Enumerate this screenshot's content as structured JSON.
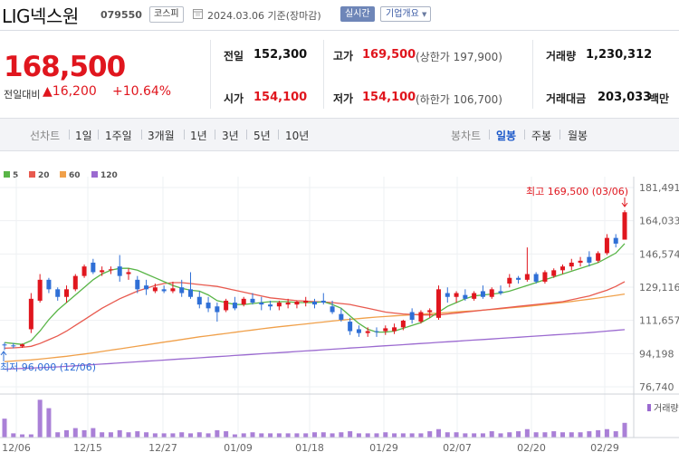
{
  "header": {
    "name": "LIG넥스원",
    "code": "079550",
    "market": "코스피",
    "date": "2024.03.06 기준(장마감)",
    "realtime": "실시간",
    "company_info": "기업개요"
  },
  "summary": {
    "price": "168,500",
    "change_label": "전일대비",
    "change_amount": "16,200",
    "change_rate": "+10.64%",
    "prev_close_label": "전일",
    "prev_close": "152,300",
    "high_label": "고가",
    "high": "169,500",
    "upper_limit": "(상한가 197,900)",
    "volume_label": "거래량",
    "volume": "1,230,312",
    "open_label": "시가",
    "open": "154,100",
    "low_label": "저가",
    "low": "154,100",
    "lower_limit": "(하한가 106,700)",
    "amount_label": "거래대금",
    "amount": "203,033",
    "amount_unit": "백만"
  },
  "toolbar": {
    "line_label": "선차트",
    "periods": [
      "1일",
      "1주일",
      "3개월",
      "1년",
      "3년",
      "5년",
      "10년"
    ],
    "candle_label": "봉차트",
    "candle_periods": [
      "일봉",
      "주봉",
      "월봉"
    ],
    "active_candle": "일봉"
  },
  "colors": {
    "up": "#e0161e",
    "down": "#2f6fd6",
    "ma5": "#59b547",
    "ma20": "#e85a4f",
    "ma60": "#f0a04a",
    "ma120": "#9b6ad0"
  },
  "chart_data": {
    "type": "candlestick",
    "legend": [
      {
        "name": "5",
        "color": "#59b547"
      },
      {
        "name": "20",
        "color": "#e85a4f"
      },
      {
        "name": "60",
        "color": "#f0a04a"
      },
      {
        "name": "120",
        "color": "#9b6ad0"
      }
    ],
    "y_ticks": [
      "181,491",
      "164,033",
      "146,574",
      "129,116",
      "111,657",
      "94,198",
      "76,740"
    ],
    "ylim": [
      76740,
      181491
    ],
    "x_ticks": [
      "12/06",
      "12/15",
      "12/27",
      "01/09",
      "01/18",
      "01/29",
      "02/07",
      "02/20",
      "02/29"
    ],
    "max_label": "최고 169,500 (03/06)",
    "min_label": "최저 96,000 (12/06)",
    "volume_label": "거래량",
    "candles": [
      {
        "o": 99000,
        "h": 100000,
        "l": 96000,
        "c": 98500
      },
      {
        "o": 98500,
        "h": 99800,
        "l": 97000,
        "c": 98000
      },
      {
        "o": 98000,
        "h": 99500,
        "l": 97200,
        "c": 99000
      },
      {
        "o": 107000,
        "h": 126000,
        "l": 105000,
        "c": 123000
      },
      {
        "o": 122000,
        "h": 136000,
        "l": 121000,
        "c": 133000
      },
      {
        "o": 133000,
        "h": 134000,
        "l": 126000,
        "c": 128000
      },
      {
        "o": 128000,
        "h": 129000,
        "l": 122000,
        "c": 124000
      },
      {
        "o": 124000,
        "h": 130000,
        "l": 121000,
        "c": 128000
      },
      {
        "o": 128000,
        "h": 136000,
        "l": 127000,
        "c": 135000
      },
      {
        "o": 135000,
        "h": 141000,
        "l": 134000,
        "c": 140000
      },
      {
        "o": 142000,
        "h": 144000,
        "l": 136000,
        "c": 137000
      },
      {
        "o": 137000,
        "h": 140000,
        "l": 135000,
        "c": 138000
      },
      {
        "o": 138000,
        "h": 140000,
        "l": 136000,
        "c": 138500
      },
      {
        "o": 140000,
        "h": 146000,
        "l": 132000,
        "c": 135000
      },
      {
        "o": 136000,
        "h": 139000,
        "l": 133000,
        "c": 137000
      },
      {
        "o": 133000,
        "h": 135000,
        "l": 126000,
        "c": 128000
      },
      {
        "o": 130000,
        "h": 133000,
        "l": 125000,
        "c": 128000
      },
      {
        "o": 127000,
        "h": 131000,
        "l": 126000,
        "c": 129000
      },
      {
        "o": 128000,
        "h": 130000,
        "l": 126000,
        "c": 127000
      },
      {
        "o": 127000,
        "h": 132000,
        "l": 126000,
        "c": 128500
      },
      {
        "o": 129000,
        "h": 133000,
        "l": 124000,
        "c": 126000
      },
      {
        "o": 128000,
        "h": 137000,
        "l": 123000,
        "c": 124000
      },
      {
        "o": 124000,
        "h": 127000,
        "l": 118000,
        "c": 120000
      },
      {
        "o": 121000,
        "h": 124000,
        "l": 116000,
        "c": 118000
      },
      {
        "o": 119000,
        "h": 121000,
        "l": 111000,
        "c": 116000
      },
      {
        "o": 117000,
        "h": 123000,
        "l": 116000,
        "c": 122000
      },
      {
        "o": 121000,
        "h": 124000,
        "l": 117000,
        "c": 118000
      },
      {
        "o": 120000,
        "h": 124000,
        "l": 119000,
        "c": 123000
      },
      {
        "o": 123000,
        "h": 126000,
        "l": 120000,
        "c": 121000
      },
      {
        "o": 121000,
        "h": 124000,
        "l": 117000,
        "c": 120000
      },
      {
        "o": 120000,
        "h": 122000,
        "l": 117000,
        "c": 119000
      },
      {
        "o": 119000,
        "h": 122000,
        "l": 117000,
        "c": 121000
      },
      {
        "o": 120000,
        "h": 123000,
        "l": 118000,
        "c": 121000
      },
      {
        "o": 120000,
        "h": 122000,
        "l": 118000,
        "c": 121500
      },
      {
        "o": 121000,
        "h": 124000,
        "l": 119000,
        "c": 122000
      },
      {
        "o": 121500,
        "h": 123000,
        "l": 118000,
        "c": 120000
      },
      {
        "o": 122000,
        "h": 126000,
        "l": 120000,
        "c": 121000
      },
      {
        "o": 119000,
        "h": 122000,
        "l": 115000,
        "c": 116000
      },
      {
        "o": 115000,
        "h": 118000,
        "l": 111000,
        "c": 112000
      },
      {
        "o": 111000,
        "h": 113000,
        "l": 104000,
        "c": 106000
      },
      {
        "o": 107000,
        "h": 109000,
        "l": 103000,
        "c": 105000
      },
      {
        "o": 105000,
        "h": 108000,
        "l": 103000,
        "c": 106000
      },
      {
        "o": 106000,
        "h": 108000,
        "l": 103000,
        "c": 105500
      },
      {
        "o": 106000,
        "h": 109000,
        "l": 104000,
        "c": 107500
      },
      {
        "o": 106000,
        "h": 110000,
        "l": 104500,
        "c": 108000
      },
      {
        "o": 108000,
        "h": 112000,
        "l": 106500,
        "c": 111500
      },
      {
        "o": 116000,
        "h": 118000,
        "l": 110000,
        "c": 112000
      },
      {
        "o": 111000,
        "h": 117000,
        "l": 110000,
        "c": 116000
      },
      {
        "o": 116000,
        "h": 118000,
        "l": 113000,
        "c": 117000
      },
      {
        "o": 113000,
        "h": 130000,
        "l": 112000,
        "c": 128000
      },
      {
        "o": 126000,
        "h": 129000,
        "l": 121000,
        "c": 124000
      },
      {
        "o": 124000,
        "h": 127000,
        "l": 121000,
        "c": 126000
      },
      {
        "o": 125000,
        "h": 128000,
        "l": 122000,
        "c": 123000
      },
      {
        "o": 123000,
        "h": 127000,
        "l": 122000,
        "c": 126000
      },
      {
        "o": 127000,
        "h": 130000,
        "l": 123000,
        "c": 124000
      },
      {
        "o": 124000,
        "h": 129000,
        "l": 123000,
        "c": 128000
      },
      {
        "o": 127000,
        "h": 130000,
        "l": 125000,
        "c": 126000
      },
      {
        "o": 131000,
        "h": 136000,
        "l": 129000,
        "c": 134000
      },
      {
        "o": 134000,
        "h": 135000,
        "l": 131000,
        "c": 133000
      },
      {
        "o": 133000,
        "h": 150000,
        "l": 132000,
        "c": 136000
      },
      {
        "o": 136000,
        "h": 137000,
        "l": 131000,
        "c": 132000
      },
      {
        "o": 132000,
        "h": 138000,
        "l": 131000,
        "c": 137000
      },
      {
        "o": 135000,
        "h": 139000,
        "l": 134000,
        "c": 138000
      },
      {
        "o": 138000,
        "h": 141000,
        "l": 136000,
        "c": 140000
      },
      {
        "o": 140000,
        "h": 144000,
        "l": 138000,
        "c": 142000
      },
      {
        "o": 142000,
        "h": 145000,
        "l": 140000,
        "c": 143000
      },
      {
        "o": 145000,
        "h": 148000,
        "l": 140000,
        "c": 142000
      },
      {
        "o": 143000,
        "h": 148000,
        "l": 142000,
        "c": 147000
      },
      {
        "o": 147000,
        "h": 157000,
        "l": 146000,
        "c": 155000
      },
      {
        "o": 155000,
        "h": 157000,
        "l": 150000,
        "c": 152000
      },
      {
        "o": 154100,
        "h": 169500,
        "l": 154100,
        "c": 168500
      }
    ],
    "volumes": [
      18,
      4,
      3,
      3,
      36,
      28,
      5,
      7,
      9,
      7,
      9,
      5,
      5,
      7,
      5,
      6,
      5,
      4,
      4,
      4,
      5,
      4,
      5,
      4,
      7,
      6,
      3,
      4,
      5,
      4,
      4,
      4,
      4,
      4,
      4,
      5,
      5,
      4,
      5,
      6,
      4,
      4,
      4,
      5,
      4,
      4,
      4,
      4,
      6,
      8,
      5,
      5,
      4,
      4,
      4,
      6,
      4,
      5,
      6,
      8,
      5,
      5,
      6,
      5,
      5,
      5,
      6,
      7,
      8,
      6,
      14
    ],
    "vol_max": 38,
    "ma5": [
      100000,
      99500,
      99000,
      101000,
      106000,
      112000,
      117000,
      121000,
      125000,
      129000,
      133000,
      136000,
      138000,
      139000,
      139000,
      138000,
      136000,
      134000,
      132000,
      130000,
      128500,
      127500,
      127000,
      125000,
      122000,
      121000,
      120000,
      120000,
      120500,
      121000,
      121500,
      121500,
      121500,
      121000,
      121000,
      121000,
      121500,
      120000,
      118000,
      114000,
      110000,
      107000,
      105500,
      105500,
      106000,
      107500,
      109000,
      110500,
      113000,
      116000,
      119000,
      121000,
      123000,
      124500,
      125000,
      125500,
      126000,
      127000,
      128500,
      130000,
      131500,
      133000,
      134500,
      136000,
      137500,
      139000,
      140500,
      142000,
      144500,
      147000,
      152000
    ],
    "ma20": [
      97000,
      97200,
      97500,
      98000,
      99500,
      101500,
      103500,
      106000,
      109000,
      112000,
      115000,
      118000,
      120500,
      123000,
      125000,
      127000,
      128500,
      130000,
      131000,
      131500,
      131500,
      131000,
      130500,
      130000,
      129500,
      128500,
      127500,
      126500,
      125500,
      124500,
      123500,
      123000,
      122500,
      122000,
      121800,
      121500,
      121300,
      121000,
      120500,
      120000,
      119000,
      118000,
      117000,
      116000,
      115500,
      115000,
      114800,
      114500,
      114500,
      114500,
      115000,
      115500,
      116000,
      116500,
      117000,
      117500,
      118000,
      118500,
      119000,
      119500,
      120000,
      120500,
      121000,
      121500,
      122500,
      123500,
      124500,
      126000,
      127500,
      129500,
      132000
    ],
    "ma60": [
      90000,
      90300,
      90600,
      90900,
      91300,
      91800,
      92300,
      92800,
      93400,
      94000,
      94600,
      95300,
      96000,
      96700,
      97400,
      98100,
      98800,
      99500,
      100200,
      100900,
      101600,
      102300,
      103000,
      103600,
      104200,
      104800,
      105400,
      106000,
      106600,
      107200,
      107800,
      108300,
      108800,
      109300,
      109800,
      110300,
      110800,
      111300,
      111800,
      112200,
      112600,
      113000,
      113400,
      113700,
      114000,
      114300,
      114600,
      114900,
      115200,
      115500,
      115800,
      116100,
      116400,
      116700,
      117000,
      117400,
      117800,
      118200,
      118600,
      119000,
      119500,
      120000,
      120500,
      121000,
      121600,
      122200,
      122800,
      123400,
      124100,
      124800,
      125500
    ],
    "ma120": [
      86000,
      86200,
      86400,
      86600,
      86800,
      87000,
      87200,
      87500,
      87800,
      88100,
      88400,
      88700,
      89000,
      89300,
      89600,
      89900,
      90200,
      90500,
      90800,
      91100,
      91400,
      91700,
      92000,
      92300,
      92600,
      92900,
      93200,
      93500,
      93800,
      94100,
      94400,
      94700,
      95000,
      95300,
      95600,
      95900,
      96200,
      96500,
      96800,
      97100,
      97400,
      97700,
      98000,
      98300,
      98600,
      98900,
      99200,
      99500,
      99800,
      100100,
      100400,
      100700,
      101000,
      101300,
      101600,
      101900,
      102200,
      102500,
      102800,
      103100,
      103400,
      103700,
      104000,
      104300,
      104600,
      104900,
      105200,
      105600,
      106000,
      106400,
      106800
    ]
  }
}
